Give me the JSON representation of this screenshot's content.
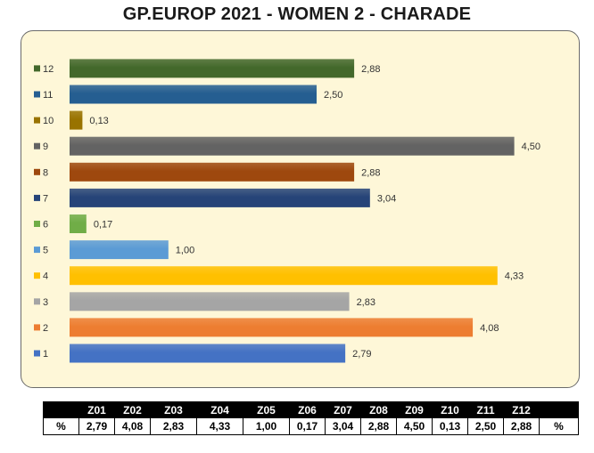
{
  "title": "GP.EUROP 2021 - WOMEN 2  - CHARADE",
  "chart_data": {
    "type": "bar",
    "orientation": "horizontal",
    "categories": [
      "1",
      "2",
      "3",
      "4",
      "5",
      "6",
      "7",
      "8",
      "9",
      "10",
      "11",
      "12"
    ],
    "values": [
      2.79,
      4.08,
      2.83,
      4.33,
      1.0,
      0.17,
      3.04,
      2.88,
      4.5,
      0.13,
      2.5,
      2.88
    ],
    "value_labels": [
      "2,79",
      "4,08",
      "2,83",
      "4,33",
      "1,00",
      "0,17",
      "3,04",
      "2,88",
      "4,50",
      "0,13",
      "2,50",
      "2,88"
    ],
    "colors": [
      "#4472c4",
      "#ed7d31",
      "#a5a5a5",
      "#ffc000",
      "#5b9bd5",
      "#70ad47",
      "#264478",
      "#9e480e",
      "#636363",
      "#997300",
      "#255e91",
      "#43682b"
    ],
    "xlim": [
      0,
      5
    ],
    "grid": false,
    "legend": "left"
  },
  "table": {
    "headers": [
      "",
      "Z01",
      "Z02",
      "Z03",
      "Z04",
      "Z05",
      "Z06",
      "Z07",
      "Z08",
      "Z09",
      "Z10",
      "Z11",
      "Z12",
      ""
    ],
    "row": [
      "%",
      "2,79",
      "4,08",
      "2,83",
      "4,33",
      "1,00",
      "0,17",
      "3,04",
      "2,88",
      "4,50",
      "0,13",
      "2,50",
      "2,88",
      "%"
    ]
  }
}
